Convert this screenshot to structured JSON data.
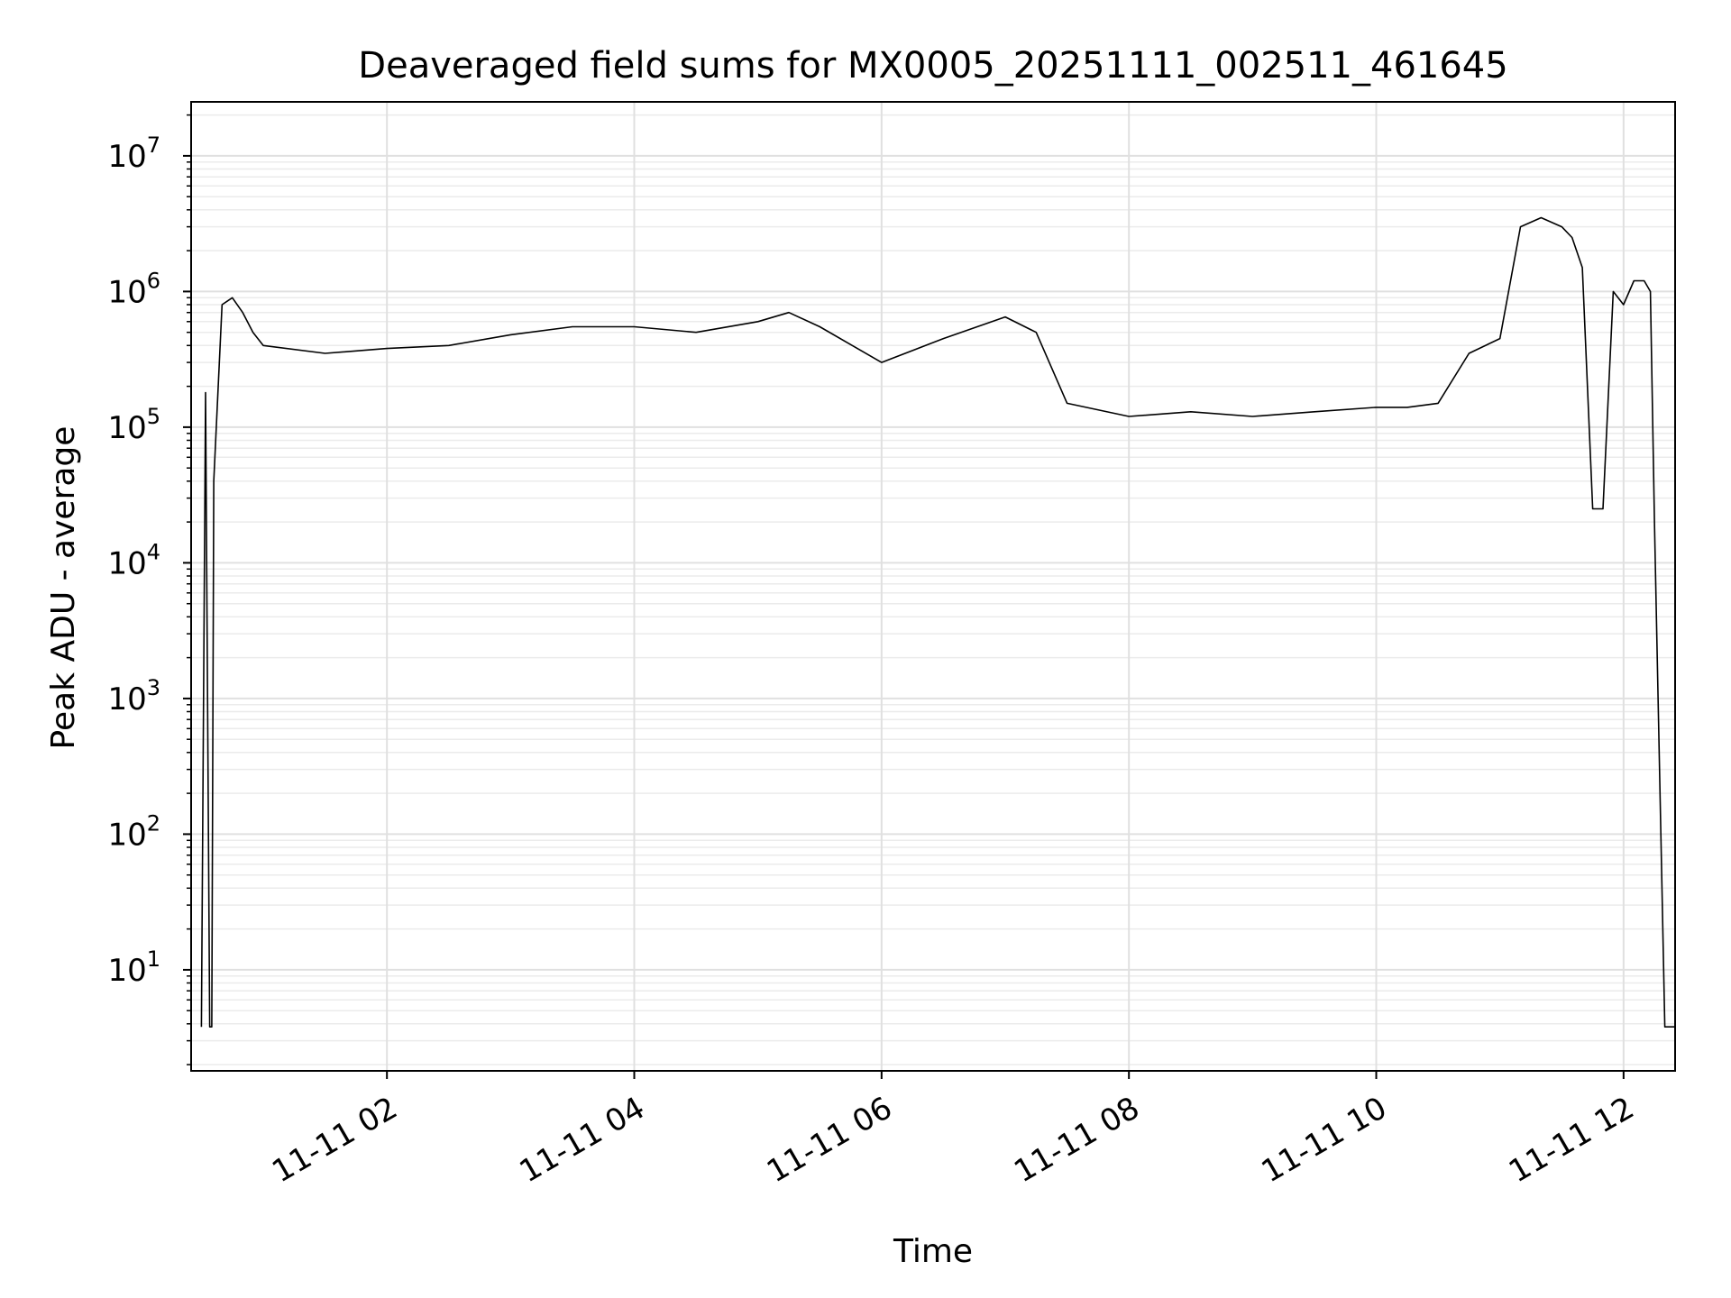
{
  "chart_data": {
    "type": "line",
    "title": "Deaveraged field sums for MX0005_20251111_002511_461645",
    "xlabel": "Time",
    "ylabel": "Peak ADU - average",
    "yscale": "log",
    "ylim": [
      1.8,
      25000000
    ],
    "xlim": [
      "2025-11-11 00:25",
      "2025-11-11 12:25"
    ],
    "grid": true,
    "x_ticks": [
      {
        "label": "11-11 02",
        "value": "2025-11-11 02:00"
      },
      {
        "label": "11-11 04",
        "value": "2025-11-11 04:00"
      },
      {
        "label": "11-11 06",
        "value": "2025-11-11 06:00"
      },
      {
        "label": "11-11 08",
        "value": "2025-11-11 08:00"
      },
      {
        "label": "11-11 10",
        "value": "2025-11-11 10:00"
      },
      {
        "label": "11-11 12",
        "value": "2025-11-11 12:00"
      }
    ],
    "y_ticks": [
      {
        "base": "10",
        "exp": "1",
        "value": 10
      },
      {
        "base": "10",
        "exp": "2",
        "value": 100
      },
      {
        "base": "10",
        "exp": "3",
        "value": 1000
      },
      {
        "base": "10",
        "exp": "4",
        "value": 10000
      },
      {
        "base": "10",
        "exp": "5",
        "value": 100000
      },
      {
        "base": "10",
        "exp": "6",
        "value": 1000000
      },
      {
        "base": "10",
        "exp": "7",
        "value": 10000000
      }
    ],
    "series": [
      {
        "color": "#000000",
        "x": [
          "2025-11-11 00:30",
          "2025-11-11 00:32",
          "2025-11-11 00:34",
          "2025-11-11 00:35",
          "2025-11-11 00:36",
          "2025-11-11 00:40",
          "2025-11-11 00:45",
          "2025-11-11 00:50",
          "2025-11-11 00:55",
          "2025-11-11 01:00",
          "2025-11-11 01:30",
          "2025-11-11 02:00",
          "2025-11-11 02:30",
          "2025-11-11 03:00",
          "2025-11-11 03:30",
          "2025-11-11 04:00",
          "2025-11-11 04:30",
          "2025-11-11 05:00",
          "2025-11-11 05:15",
          "2025-11-11 05:30",
          "2025-11-11 06:00",
          "2025-11-11 06:30",
          "2025-11-11 07:00",
          "2025-11-11 07:15",
          "2025-11-11 07:30",
          "2025-11-11 08:00",
          "2025-11-11 08:30",
          "2025-11-11 09:00",
          "2025-11-11 09:30",
          "2025-11-11 10:00",
          "2025-11-11 10:15",
          "2025-11-11 10:30",
          "2025-11-11 10:45",
          "2025-11-11 11:00",
          "2025-11-11 11:10",
          "2025-11-11 11:20",
          "2025-11-11 11:30",
          "2025-11-11 11:35",
          "2025-11-11 11:40",
          "2025-11-11 11:45",
          "2025-11-11 11:50",
          "2025-11-11 11:55",
          "2025-11-11 12:00",
          "2025-11-11 12:05",
          "2025-11-11 12:10",
          "2025-11-11 12:13",
          "2025-11-11 12:15",
          "2025-11-11 12:20",
          "2025-11-11 12:25"
        ],
        "y": [
          3.8,
          180000,
          3.8,
          3.8,
          40000,
          800000,
          900000,
          700000,
          500000,
          400000,
          350000,
          380000,
          400000,
          480000,
          550000,
          550000,
          500000,
          600000,
          700000,
          550000,
          300000,
          450000,
          650000,
          500000,
          150000,
          120000,
          130000,
          120000,
          130000,
          140000,
          140000,
          150000,
          350000,
          450000,
          3000000,
          3500000,
          3000000,
          2500000,
          1500000,
          25000,
          25000,
          1000000,
          800000,
          1200000,
          1200000,
          1000000,
          20000,
          3.8,
          3.8
        ]
      }
    ]
  }
}
